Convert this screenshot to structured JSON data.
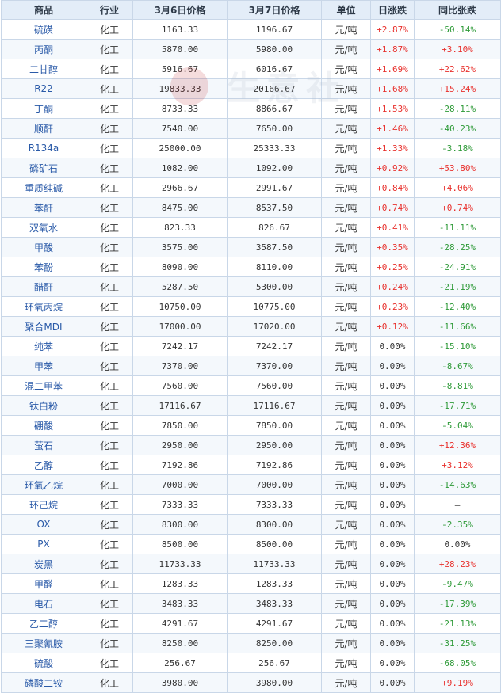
{
  "headers": [
    "商品",
    "行业",
    "3月6日价格",
    "3月7日价格",
    "单位",
    "日涨跌",
    "同比张跌"
  ],
  "rows": [
    {
      "name": "硫磺",
      "industry": "化工",
      "p1": "1163.33",
      "p2": "1196.67",
      "unit": "元/吨",
      "daily": "+2.87%",
      "yoy": "-50.14%"
    },
    {
      "name": "丙酮",
      "industry": "化工",
      "p1": "5870.00",
      "p2": "5980.00",
      "unit": "元/吨",
      "daily": "+1.87%",
      "yoy": "+3.10%"
    },
    {
      "name": "二甘醇",
      "industry": "化工",
      "p1": "5916.67",
      "p2": "6016.67",
      "unit": "元/吨",
      "daily": "+1.69%",
      "yoy": "+22.62%"
    },
    {
      "name": "R22",
      "industry": "化工",
      "p1": "19833.33",
      "p2": "20166.67",
      "unit": "元/吨",
      "daily": "+1.68%",
      "yoy": "+15.24%"
    },
    {
      "name": "丁酮",
      "industry": "化工",
      "p1": "8733.33",
      "p2": "8866.67",
      "unit": "元/吨",
      "daily": "+1.53%",
      "yoy": "-28.11%"
    },
    {
      "name": "顺酐",
      "industry": "化工",
      "p1": "7540.00",
      "p2": "7650.00",
      "unit": "元/吨",
      "daily": "+1.46%",
      "yoy": "-40.23%"
    },
    {
      "name": "R134a",
      "industry": "化工",
      "p1": "25000.00",
      "p2": "25333.33",
      "unit": "元/吨",
      "daily": "+1.33%",
      "yoy": "-3.18%"
    },
    {
      "name": "磷矿石",
      "industry": "化工",
      "p1": "1082.00",
      "p2": "1092.00",
      "unit": "元/吨",
      "daily": "+0.92%",
      "yoy": "+53.80%"
    },
    {
      "name": "重质纯碱",
      "industry": "化工",
      "p1": "2966.67",
      "p2": "2991.67",
      "unit": "元/吨",
      "daily": "+0.84%",
      "yoy": "+4.06%"
    },
    {
      "name": "苯酐",
      "industry": "化工",
      "p1": "8475.00",
      "p2": "8537.50",
      "unit": "元/吨",
      "daily": "+0.74%",
      "yoy": "+0.74%"
    },
    {
      "name": "双氧水",
      "industry": "化工",
      "p1": "823.33",
      "p2": "826.67",
      "unit": "元/吨",
      "daily": "+0.41%",
      "yoy": "-11.11%"
    },
    {
      "name": "甲酸",
      "industry": "化工",
      "p1": "3575.00",
      "p2": "3587.50",
      "unit": "元/吨",
      "daily": "+0.35%",
      "yoy": "-28.25%"
    },
    {
      "name": "苯酚",
      "industry": "化工",
      "p1": "8090.00",
      "p2": "8110.00",
      "unit": "元/吨",
      "daily": "+0.25%",
      "yoy": "-24.91%"
    },
    {
      "name": "醋酐",
      "industry": "化工",
      "p1": "5287.50",
      "p2": "5300.00",
      "unit": "元/吨",
      "daily": "+0.24%",
      "yoy": "-21.19%"
    },
    {
      "name": "环氧丙烷",
      "industry": "化工",
      "p1": "10750.00",
      "p2": "10775.00",
      "unit": "元/吨",
      "daily": "+0.23%",
      "yoy": "-12.40%"
    },
    {
      "name": "聚合MDI",
      "industry": "化工",
      "p1": "17000.00",
      "p2": "17020.00",
      "unit": "元/吨",
      "daily": "+0.12%",
      "yoy": "-11.66%"
    },
    {
      "name": "纯苯",
      "industry": "化工",
      "p1": "7242.17",
      "p2": "7242.17",
      "unit": "元/吨",
      "daily": "0.00%",
      "yoy": "-15.10%"
    },
    {
      "name": "甲苯",
      "industry": "化工",
      "p1": "7370.00",
      "p2": "7370.00",
      "unit": "元/吨",
      "daily": "0.00%",
      "yoy": "-8.67%"
    },
    {
      "name": "混二甲苯",
      "industry": "化工",
      "p1": "7560.00",
      "p2": "7560.00",
      "unit": "元/吨",
      "daily": "0.00%",
      "yoy": "-8.81%"
    },
    {
      "name": "钛白粉",
      "industry": "化工",
      "p1": "17116.67",
      "p2": "17116.67",
      "unit": "元/吨",
      "daily": "0.00%",
      "yoy": "-17.71%"
    },
    {
      "name": "硼酸",
      "industry": "化工",
      "p1": "7850.00",
      "p2": "7850.00",
      "unit": "元/吨",
      "daily": "0.00%",
      "yoy": "-5.04%"
    },
    {
      "name": "萤石",
      "industry": "化工",
      "p1": "2950.00",
      "p2": "2950.00",
      "unit": "元/吨",
      "daily": "0.00%",
      "yoy": "+12.36%"
    },
    {
      "name": "乙醇",
      "industry": "化工",
      "p1": "7192.86",
      "p2": "7192.86",
      "unit": "元/吨",
      "daily": "0.00%",
      "yoy": "+3.12%"
    },
    {
      "name": "环氧乙烷",
      "industry": "化工",
      "p1": "7000.00",
      "p2": "7000.00",
      "unit": "元/吨",
      "daily": "0.00%",
      "yoy": "-14.63%"
    },
    {
      "name": "环己烷",
      "industry": "化工",
      "p1": "7333.33",
      "p2": "7333.33",
      "unit": "元/吨",
      "daily": "0.00%",
      "yoy": "—"
    },
    {
      "name": "OX",
      "industry": "化工",
      "p1": "8300.00",
      "p2": "8300.00",
      "unit": "元/吨",
      "daily": "0.00%",
      "yoy": "-2.35%"
    },
    {
      "name": "PX",
      "industry": "化工",
      "p1": "8500.00",
      "p2": "8500.00",
      "unit": "元/吨",
      "daily": "0.00%",
      "yoy": "0.00%"
    },
    {
      "name": "炭黑",
      "industry": "化工",
      "p1": "11733.33",
      "p2": "11733.33",
      "unit": "元/吨",
      "daily": "0.00%",
      "yoy": "+28.23%"
    },
    {
      "name": "甲醛",
      "industry": "化工",
      "p1": "1283.33",
      "p2": "1283.33",
      "unit": "元/吨",
      "daily": "0.00%",
      "yoy": "-9.47%"
    },
    {
      "name": "电石",
      "industry": "化工",
      "p1": "3483.33",
      "p2": "3483.33",
      "unit": "元/吨",
      "daily": "0.00%",
      "yoy": "-17.39%"
    },
    {
      "name": "乙二醇",
      "industry": "化工",
      "p1": "4291.67",
      "p2": "4291.67",
      "unit": "元/吨",
      "daily": "0.00%",
      "yoy": "-21.13%"
    },
    {
      "name": "三聚氰胺",
      "industry": "化工",
      "p1": "8250.00",
      "p2": "8250.00",
      "unit": "元/吨",
      "daily": "0.00%",
      "yoy": "-31.25%"
    },
    {
      "name": "硫酸",
      "industry": "化工",
      "p1": "256.67",
      "p2": "256.67",
      "unit": "元/吨",
      "daily": "0.00%",
      "yoy": "-68.05%"
    },
    {
      "name": "磷酸二铵",
      "industry": "化工",
      "p1": "3980.00",
      "p2": "3980.00",
      "unit": "元/吨",
      "daily": "0.00%",
      "yoy": "+9.19%"
    }
  ],
  "watermark": {
    "text": "生意社",
    "url": "100ppi.com"
  },
  "colors": {
    "up": "#e8302c",
    "down": "#2e9a38",
    "name": "#2a5aa8",
    "header_bg": "#e3edf8"
  }
}
